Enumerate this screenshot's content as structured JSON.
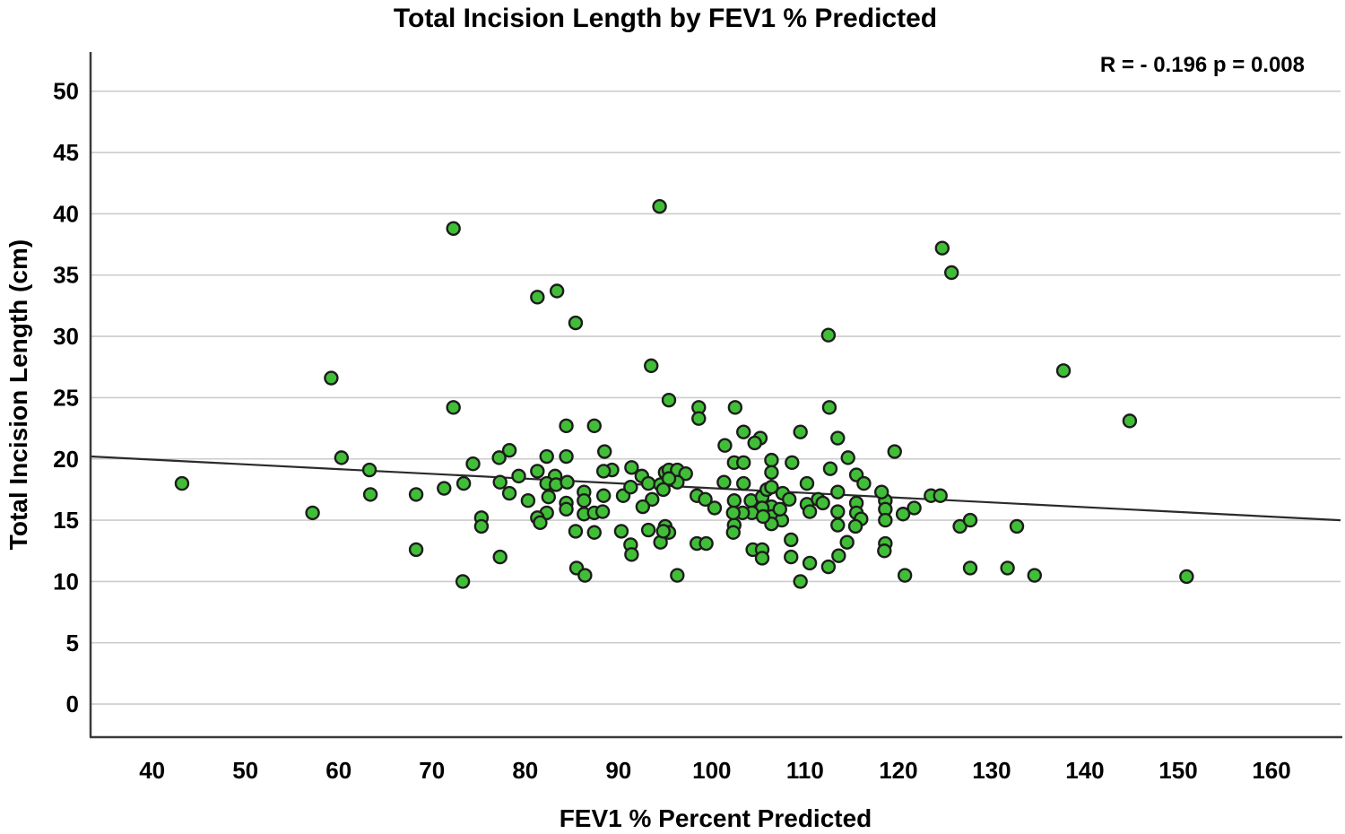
{
  "chart_data": {
    "type": "scatter",
    "title": "Total Incision Length by FEV1 % Predicted",
    "xlabel": "FEV1 % Percent Predicted",
    "ylabel": "Total Incision Length (cm)",
    "annotation": "R = - 0.196 p = 0.008",
    "x_ticks": [
      40,
      50,
      60,
      70,
      80,
      90,
      100,
      110,
      120,
      130,
      140,
      150,
      160
    ],
    "y_ticks": [
      0,
      5,
      10,
      15,
      20,
      25,
      30,
      35,
      40,
      45,
      50
    ],
    "xlim": [
      33.4,
      167.4
    ],
    "ylim": [
      -2.7,
      53.2
    ],
    "grid": "horizontal-only",
    "legend_position": "none",
    "colors": {
      "point_fill": "#41be37",
      "point_stroke": "#1c1c1c",
      "gridline": "#cccccc",
      "axis_line": "#3a3a3a",
      "trend_line": "#2b2b2b",
      "background": "#ffffff"
    },
    "trendline": {
      "x1": 33.4,
      "y1": 20.2,
      "x2": 167.4,
      "y2": 15.0
    },
    "points": [
      [
        43.2,
        18.0
      ],
      [
        59.2,
        26.6
      ],
      [
        57.2,
        15.6
      ],
      [
        60.3,
        20.1
      ],
      [
        63.3,
        19.1
      ],
      [
        63.4,
        17.1
      ],
      [
        68.3,
        17.1
      ],
      [
        68.3,
        12.6
      ],
      [
        71.3,
        17.6
      ],
      [
        72.3,
        24.2
      ],
      [
        72.3,
        38.8
      ],
      [
        73.3,
        10.0
      ],
      [
        84.4,
        22.7
      ],
      [
        87.4,
        22.7
      ],
      [
        78.3,
        20.7
      ],
      [
        77.2,
        20.1
      ],
      [
        74.4,
        19.6
      ],
      [
        82.3,
        20.2
      ],
      [
        84.4,
        20.2
      ],
      [
        88.5,
        20.6
      ],
      [
        91.4,
        19.3
      ],
      [
        89.3,
        19.1
      ],
      [
        88.4,
        19.0
      ],
      [
        81.3,
        19.0
      ],
      [
        83.2,
        18.6
      ],
      [
        82.3,
        18.0
      ],
      [
        83.3,
        17.9
      ],
      [
        84.5,
        18.1
      ],
      [
        79.3,
        18.6
      ],
      [
        77.3,
        18.1
      ],
      [
        73.4,
        18.0
      ],
      [
        78.3,
        17.2
      ],
      [
        82.5,
        16.9
      ],
      [
        82.3,
        15.6
      ],
      [
        80.3,
        16.6
      ],
      [
        86.3,
        17.3
      ],
      [
        86.3,
        16.6
      ],
      [
        84.4,
        16.4
      ],
      [
        84.4,
        15.9
      ],
      [
        88.4,
        17.0
      ],
      [
        90.5,
        17.0
      ],
      [
        91.3,
        17.7
      ],
      [
        92.5,
        18.6
      ],
      [
        93.2,
        18.0
      ],
      [
        93.6,
        16.7
      ],
      [
        92.6,
        16.1
      ],
      [
        94.5,
        17.9
      ],
      [
        95.0,
        18.9
      ],
      [
        86.3,
        15.5
      ],
      [
        87.4,
        15.6
      ],
      [
        88.3,
        15.7
      ],
      [
        81.3,
        15.2
      ],
      [
        81.6,
        14.8
      ],
      [
        75.3,
        15.2
      ],
      [
        75.3,
        14.5
      ],
      [
        85.4,
        14.1
      ],
      [
        87.4,
        14.0
      ],
      [
        90.3,
        14.1
      ],
      [
        93.2,
        14.2
      ],
      [
        95.0,
        14.5
      ],
      [
        91.3,
        13.0
      ],
      [
        91.4,
        12.2
      ],
      [
        94.5,
        13.2
      ],
      [
        77.3,
        12.0
      ],
      [
        85.5,
        11.1
      ],
      [
        86.4,
        10.5
      ],
      [
        95.4,
        24.8
      ],
      [
        98.6,
        24.2
      ],
      [
        98.6,
        23.3
      ],
      [
        102.5,
        24.2
      ],
      [
        112.6,
        24.2
      ],
      [
        103.4,
        22.2
      ],
      [
        105.2,
        21.7
      ],
      [
        104.6,
        21.3
      ],
      [
        101.4,
        21.1
      ],
      [
        109.5,
        22.2
      ],
      [
        113.5,
        21.7
      ],
      [
        114.6,
        20.1
      ],
      [
        102.4,
        19.7
      ],
      [
        103.4,
        19.7
      ],
      [
        106.4,
        19.9
      ],
      [
        106.4,
        18.9
      ],
      [
        108.6,
        19.7
      ],
      [
        112.7,
        19.2
      ],
      [
        115.5,
        18.7
      ],
      [
        116.3,
        18.0
      ],
      [
        95.4,
        19.1
      ],
      [
        96.3,
        19.1
      ],
      [
        97.2,
        18.8
      ],
      [
        96.3,
        18.1
      ],
      [
        95.4,
        18.4
      ],
      [
        101.3,
        18.1
      ],
      [
        103.4,
        18.0
      ],
      [
        98.4,
        17.0
      ],
      [
        99.3,
        16.7
      ],
      [
        100.3,
        16.0
      ],
      [
        102.4,
        16.6
      ],
      [
        104.2,
        16.6
      ],
      [
        105.4,
        16.9
      ],
      [
        105.9,
        17.5
      ],
      [
        106.4,
        17.7
      ],
      [
        107.6,
        17.2
      ],
      [
        108.3,
        16.7
      ],
      [
        106.4,
        16.1
      ],
      [
        105.4,
        16.0
      ],
      [
        104.3,
        15.6
      ],
      [
        103.3,
        15.6
      ],
      [
        106.4,
        15.3
      ],
      [
        107.5,
        15.0
      ],
      [
        106.4,
        14.7
      ],
      [
        102.4,
        14.6
      ],
      [
        110.2,
        16.3
      ],
      [
        110.5,
        15.7
      ],
      [
        111.4,
        16.7
      ],
      [
        111.9,
        16.4
      ],
      [
        113.5,
        17.3
      ],
      [
        113.5,
        15.7
      ],
      [
        115.5,
        16.4
      ],
      [
        115.5,
        15.6
      ],
      [
        95.4,
        14.0
      ],
      [
        98.4,
        13.1
      ],
      [
        99.4,
        13.1
      ],
      [
        104.4,
        12.6
      ],
      [
        105.4,
        12.6
      ],
      [
        105.4,
        11.9
      ],
      [
        108.5,
        13.4
      ],
      [
        108.5,
        12.0
      ],
      [
        110.5,
        11.5
      ],
      [
        112.5,
        11.2
      ],
      [
        113.6,
        12.1
      ],
      [
        114.5,
        13.2
      ],
      [
        96.3,
        10.5
      ],
      [
        109.5,
        10.0
      ],
      [
        94.8,
        17.5
      ],
      [
        94.8,
        14.1
      ],
      [
        94.4,
        40.6
      ],
      [
        81.3,
        33.2
      ],
      [
        83.4,
        33.7
      ],
      [
        85.4,
        31.1
      ],
      [
        93.5,
        27.6
      ],
      [
        112.5,
        30.1
      ],
      [
        124.7,
        37.2
      ],
      [
        125.7,
        35.2
      ],
      [
        137.7,
        27.2
      ],
      [
        144.8,
        23.1
      ],
      [
        119.6,
        20.6
      ],
      [
        118.6,
        16.6
      ],
      [
        118.6,
        15.9
      ],
      [
        118.6,
        15.0
      ],
      [
        120.5,
        15.5
      ],
      [
        121.7,
        16.0
      ],
      [
        123.5,
        17.0
      ],
      [
        124.5,
        17.0
      ],
      [
        126.6,
        14.5
      ],
      [
        127.7,
        15.0
      ],
      [
        132.7,
        14.5
      ],
      [
        118.6,
        13.1
      ],
      [
        118.5,
        12.5
      ],
      [
        120.7,
        10.5
      ],
      [
        127.7,
        11.1
      ],
      [
        131.7,
        11.1
      ],
      [
        134.6,
        10.5
      ],
      [
        150.9,
        10.4
      ],
      [
        118.2,
        17.3
      ],
      [
        116.0,
        15.1
      ],
      [
        110.2,
        18.0
      ],
      [
        107.3,
        15.9
      ],
      [
        102.3,
        15.6
      ],
      [
        105.5,
        15.3
      ],
      [
        113.5,
        14.6
      ],
      [
        115.4,
        14.5
      ],
      [
        102.3,
        14.0
      ]
    ]
  }
}
